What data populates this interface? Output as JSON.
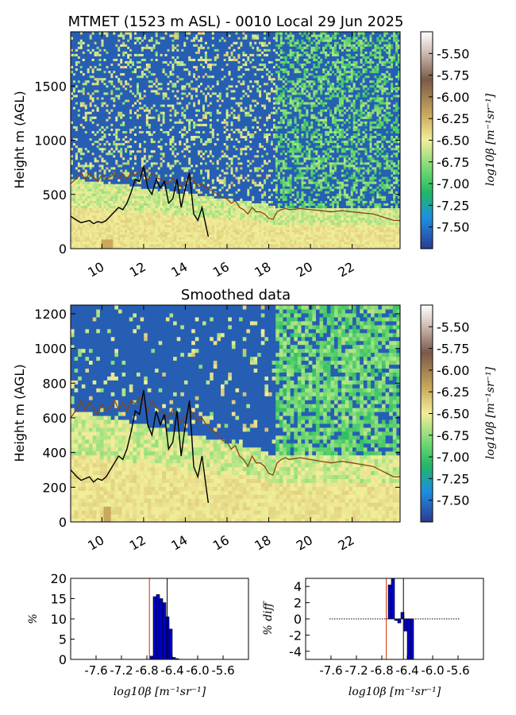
{
  "chart_data": [
    {
      "type": "heatmap",
      "title": "MTMET (1523 m ASL) - 0010 Local 29 Jun 2025",
      "ylabel": "Height m (AGL)",
      "xlabel": "",
      "xlim": [
        8.5,
        24.3
      ],
      "ylim": [
        0,
        2000
      ],
      "xticks": [
        "10",
        "12",
        "14",
        "16",
        "18",
        "20",
        "22"
      ],
      "xtick_values": [
        10,
        12,
        14,
        16,
        18,
        20,
        22
      ],
      "yticks": [
        "0",
        "500",
        "1000",
        "1500"
      ],
      "ytick_values": [
        0,
        500,
        1000,
        1500
      ],
      "colorbar": {
        "label": "log10β [m⁻¹sr⁻¹]",
        "range": [
          -7.75,
          -5.25
        ],
        "ticks": [
          "-5.50",
          "-5.75",
          "-6.00",
          "-6.25",
          "-6.50",
          "-6.75",
          "-7.00",
          "-7.25",
          "-7.50"
        ],
        "tick_values": [
          -5.5,
          -5.75,
          -6.0,
          -6.25,
          -6.5,
          -6.75,
          -7.0,
          -7.25,
          -7.5
        ],
        "colors": [
          "#2c3a92",
          "#1e8ee0",
          "#22b866",
          "#6fd870",
          "#f2ee9a",
          "#c9a85c",
          "#7a5a48",
          "#ffffff"
        ]
      },
      "series": [
        {
          "color": "#8b4513",
          "x": [
            8.5,
            8.8,
            9.0,
            9.2,
            9.4,
            9.6,
            9.8,
            10.0,
            10.2,
            10.4,
            10.6,
            10.8,
            11.0,
            11.2,
            11.4,
            11.6,
            11.8,
            12.0,
            12.2,
            12.4,
            12.6,
            12.8,
            13.0,
            13.2,
            13.4,
            13.6,
            13.8,
            14.0,
            14.2,
            14.4,
            14.6,
            14.8,
            15.0,
            15.2,
            15.4,
            15.6,
            15.8,
            16.0,
            16.2,
            16.4,
            16.6,
            16.8,
            17.0,
            17.2,
            17.4,
            17.6,
            17.8,
            18.0,
            18.2,
            18.4,
            18.6,
            18.8,
            19.0,
            19.5,
            20.0,
            20.5,
            21.0,
            21.5,
            22.0,
            22.5,
            23.0,
            23.5,
            24.0,
            24.3
          ],
          "y": [
            600,
            650,
            700,
            640,
            690,
            660,
            620,
            680,
            640,
            660,
            700,
            650,
            690,
            640,
            700,
            680,
            720,
            680,
            640,
            700,
            660,
            640,
            620,
            600,
            650,
            600,
            570,
            610,
            650,
            620,
            580,
            600,
            560,
            540,
            520,
            500,
            470,
            460,
            420,
            440,
            380,
            360,
            320,
            380,
            340,
            340,
            320,
            280,
            270,
            340,
            360,
            370,
            360,
            370,
            360,
            350,
            340,
            350,
            340,
            330,
            320,
            290,
            260,
            260
          ]
        },
        {
          "color": "#000000",
          "x": [
            8.5,
            8.8,
            9.0,
            9.2,
            9.4,
            9.6,
            9.8,
            10.0,
            10.2,
            10.4,
            10.6,
            10.8,
            11.0,
            11.2,
            11.4,
            11.6,
            11.8,
            12.0,
            12.2,
            12.4,
            12.6,
            12.8,
            13.0,
            13.2,
            13.4,
            13.6,
            13.8,
            14.0,
            14.2,
            14.4,
            14.6,
            14.8,
            15.0,
            15.1
          ],
          "y": [
            300,
            260,
            240,
            250,
            260,
            230,
            250,
            240,
            260,
            300,
            340,
            380,
            360,
            420,
            520,
            640,
            620,
            760,
            560,
            500,
            640,
            560,
            620,
            420,
            460,
            640,
            380,
            560,
            700,
            320,
            260,
            380,
            200,
            110
          ]
        }
      ]
    },
    {
      "type": "heatmap",
      "title": "Smoothed data",
      "ylabel": "Height m (AGL)",
      "xlabel": "",
      "xlim": [
        8.5,
        24.3
      ],
      "ylim": [
        0,
        1250
      ],
      "xticks": [
        "10",
        "12",
        "14",
        "16",
        "18",
        "20",
        "22"
      ],
      "xtick_values": [
        10,
        12,
        14,
        16,
        18,
        20,
        22
      ],
      "yticks": [
        "0",
        "200",
        "400",
        "600",
        "800",
        "1000",
        "1200"
      ],
      "ytick_values": [
        0,
        200,
        400,
        600,
        800,
        1000,
        1200
      ],
      "colorbar": {
        "label": "log10β [m⁻¹sr⁻¹]",
        "range": [
          -7.75,
          -5.25
        ],
        "ticks": [
          "-5.50",
          "-5.75",
          "-6.00",
          "-6.25",
          "-6.50",
          "-6.75",
          "-7.00",
          "-7.25",
          "-7.50"
        ],
        "tick_values": [
          -5.5,
          -5.75,
          -6.0,
          -6.25,
          -6.5,
          -6.75,
          -7.0,
          -7.25,
          -7.5
        ]
      }
    },
    {
      "type": "bar",
      "title": "",
      "xlabel": "log10β [m⁻¹sr⁻¹]",
      "ylabel": "%",
      "xlim": [
        -8.0,
        -5.2
      ],
      "ylim": [
        0,
        20
      ],
      "xticks": [
        "-7.6",
        "-7.2",
        "-6.8",
        "-6.4",
        "-6.0",
        "-5.6"
      ],
      "xtick_values": [
        -7.6,
        -7.2,
        -6.8,
        -6.4,
        -6.0,
        -5.6
      ],
      "yticks": [
        "0",
        "5",
        "10",
        "15",
        "20"
      ],
      "ytick_values": [
        0,
        5,
        10,
        15,
        20
      ],
      "bin_width": 0.05,
      "bins": [
        -6.75,
        -6.7,
        -6.65,
        -6.6,
        -6.55,
        -6.5,
        -6.45,
        -6.4,
        -6.35
      ],
      "values": [
        0.8,
        15.5,
        16.0,
        15.0,
        14.0,
        10.5,
        7.5,
        0.5,
        0.2
      ],
      "vlines": [
        {
          "x": -6.76,
          "color": "#cc3300"
        },
        {
          "x": -6.48,
          "color": "#000000"
        }
      ]
    },
    {
      "type": "bar",
      "title": "",
      "xlabel": "log10β [m⁻¹sr⁻¹]",
      "ylabel": "% diff",
      "xlim": [
        -8.0,
        -5.2
      ],
      "ylim": [
        -5,
        5
      ],
      "xticks": [
        "-7.6",
        "-7.2",
        "-6.8",
        "-6.4",
        "-6.0",
        "-5.6"
      ],
      "xtick_values": [
        -7.6,
        -7.2,
        -6.8,
        -6.4,
        -6.0,
        -5.6
      ],
      "yticks": [
        "-4",
        "-2",
        "0",
        "2",
        "4"
      ],
      "ytick_values": [
        -4,
        -2,
        0,
        2,
        4
      ],
      "bin_width": 0.05,
      "bins": [
        -6.7,
        -6.65,
        -6.6,
        -6.55,
        -6.5,
        -6.45,
        -6.4,
        -6.35
      ],
      "values": [
        4.2,
        5.0,
        -0.2,
        -0.5,
        0.8,
        -1.5,
        -5.0,
        -5.0
      ],
      "vlines": [
        {
          "x": -6.73,
          "color": "#cc3300"
        },
        {
          "x": -6.46,
          "color": "#000000"
        }
      ]
    }
  ]
}
